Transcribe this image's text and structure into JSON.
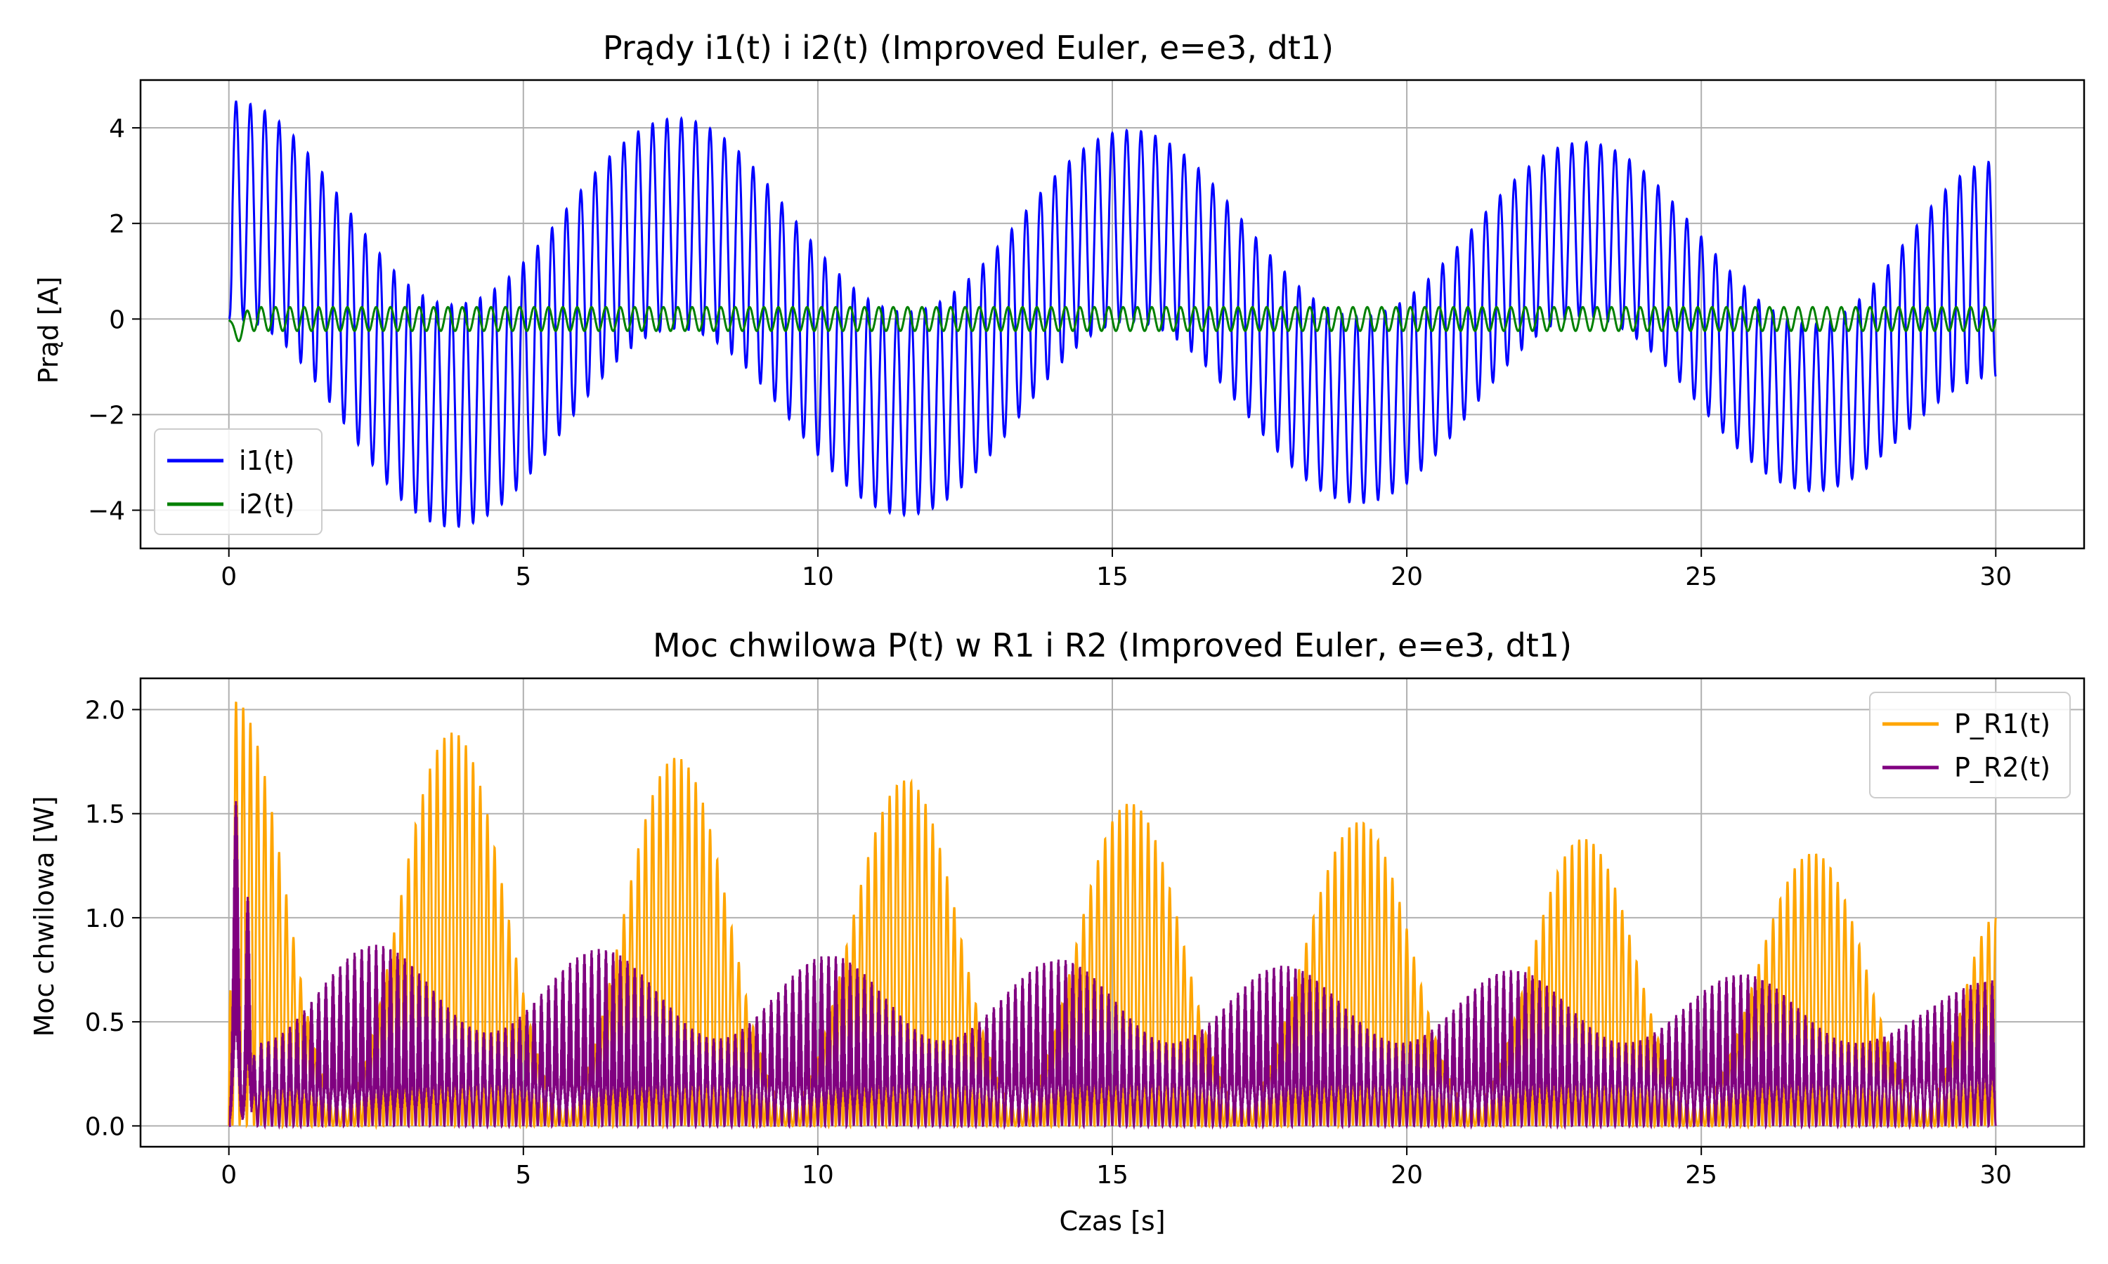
{
  "chart_data": [
    {
      "type": "line",
      "title": "Prądy i1(t) i i2(t) (Improved Euler, e=e3, dt1)",
      "xlabel": "",
      "ylabel": "Prąd [A]",
      "xlim": [
        -1.5,
        31.5
      ],
      "ylim": [
        -4.8,
        5.0
      ],
      "xticks": [
        0,
        5,
        10,
        15,
        20,
        25,
        30
      ],
      "xtick_labels": [
        "0",
        "5",
        "10",
        "15",
        "20",
        "25",
        "30"
      ],
      "yticks": [
        -4,
        -2,
        0,
        2,
        4
      ],
      "ytick_labels": [
        "−4",
        "−2",
        "0",
        "2",
        "4"
      ],
      "grid": true,
      "legend_position": "lower-left",
      "series": [
        {
          "name": "i1(t)",
          "color": "#0000ff",
          "oscillation_frequency_hz": 4.1,
          "envelope": {
            "t": [
              0.1,
              3.8,
              7.6,
              11.5,
              15.3,
              19.2,
              23.0,
              26.9,
              30.0
            ],
            "upper": [
              4.55,
              0.3,
              4.2,
              0.15,
              3.95,
              0.05,
              3.7,
              -0.1,
              3.3
            ],
            "lower": [
              0.0,
              -4.35,
              -0.2,
              -4.1,
              -0.05,
              -3.85,
              0.05,
              -3.6,
              -1.2
            ]
          }
        },
        {
          "name": "i2(t)",
          "color": "#008000",
          "oscillation_frequency_hz": 4.1,
          "initial_dip": -0.38,
          "amplitude": 0.25
        }
      ]
    },
    {
      "type": "line",
      "title": "Moc chwilowa P(t) w R1 i R2 (Improved Euler, e=e3, dt1)",
      "xlabel": "Czas [s]",
      "ylabel": "Moc chwilowa [W]",
      "xlim": [
        -1.5,
        31.5
      ],
      "ylim": [
        -0.1,
        2.15
      ],
      "xticks": [
        0,
        5,
        10,
        15,
        20,
        25,
        30
      ],
      "xtick_labels": [
        "0",
        "5",
        "10",
        "15",
        "20",
        "25",
        "30"
      ],
      "yticks": [
        0.0,
        0.5,
        1.0,
        1.5,
        2.0
      ],
      "ytick_labels": [
        "0.0",
        "0.5",
        "1.0",
        "1.5",
        "2.0"
      ],
      "grid": true,
      "legend_position": "top-right",
      "series": [
        {
          "name": "P_R1(t)",
          "color": "#ffa500",
          "peak_frequency_hz": 8.2,
          "envelope": {
            "t": [
              0.1,
              1.9,
              3.8,
              5.7,
              7.6,
              9.5,
              11.5,
              13.4,
              15.3,
              17.2,
              19.2,
              21.1,
              23.0,
              24.9,
              26.9,
              28.8,
              30.0
            ],
            "upper": [
              2.04,
              0.1,
              1.89,
              0.1,
              1.77,
              0.1,
              1.66,
              0.1,
              1.55,
              0.1,
              1.46,
              0.1,
              1.38,
              0.1,
              1.31,
              0.1,
              1.0
            ]
          }
        },
        {
          "name": "P_R2(t)",
          "color": "#800080",
          "peak_frequency_hz": 8.2,
          "initial_spike": 1.56,
          "envelope": {
            "t": [
              0.5,
              2.5,
              4.4,
              6.3,
              8.3,
              10.2,
              12.1,
              14.1,
              16.0,
              17.9,
              19.9,
              21.8,
              23.7,
              25.7,
              27.6,
              30.0
            ],
            "upper": [
              0.4,
              0.87,
              0.45,
              0.85,
              0.42,
              0.82,
              0.41,
              0.8,
              0.4,
              0.77,
              0.4,
              0.75,
              0.4,
              0.73,
              0.4,
              0.7
            ],
            "lower_band": [
              0.2,
              0.2,
              0.22,
              0.21,
              0.22,
              0.21,
              0.22,
              0.22,
              0.22,
              0.22,
              0.22,
              0.22,
              0.22,
              0.22,
              0.22,
              0.25
            ]
          }
        }
      ]
    }
  ]
}
